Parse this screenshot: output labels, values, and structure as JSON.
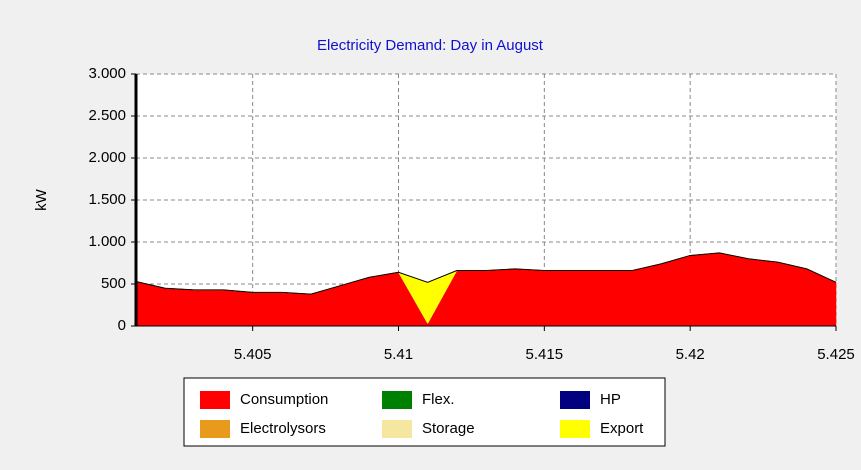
{
  "chart_data": {
    "type": "stacked_area",
    "title": "Electricity Demand: Day in August",
    "y_label": "kW",
    "x": [
      5.401,
      5.402,
      5.403,
      5.404,
      5.405,
      5.406,
      5.407,
      5.408,
      5.409,
      5.41,
      5.411,
      5.412,
      5.413,
      5.414,
      5.415,
      5.416,
      5.417,
      5.418,
      5.419,
      5.42,
      5.421,
      5.422,
      5.423,
      5.424,
      5.425
    ],
    "series": [
      {
        "name": "Consumption",
        "color": "#ff0000",
        "values": [
          530,
          450,
          430,
          430,
          400,
          400,
          380,
          480,
          580,
          640,
          30,
          660,
          660,
          680,
          660,
          660,
          660,
          660,
          740,
          840,
          870,
          800,
          760,
          680,
          520
        ]
      },
      {
        "name": "Flex.",
        "color": "#008000",
        "values": [
          0,
          0,
          0,
          0,
          0,
          0,
          0,
          0,
          0,
          0,
          0,
          0,
          0,
          0,
          0,
          0,
          0,
          0,
          0,
          0,
          0,
          0,
          0,
          0,
          0
        ]
      },
      {
        "name": "HP",
        "color": "#000080",
        "values": [
          0,
          0,
          0,
          0,
          0,
          0,
          0,
          0,
          0,
          0,
          0,
          0,
          0,
          0,
          0,
          0,
          0,
          0,
          0,
          0,
          0,
          0,
          0,
          0,
          0
        ]
      },
      {
        "name": "Electrolysors",
        "color": "#e89a1c",
        "values": [
          0,
          0,
          0,
          0,
          0,
          0,
          0,
          0,
          0,
          0,
          0,
          0,
          0,
          0,
          0,
          0,
          0,
          0,
          0,
          0,
          0,
          0,
          0,
          0,
          0
        ]
      },
      {
        "name": "Storage",
        "color": "#f5e6a0",
        "values": [
          0,
          0,
          0,
          0,
          0,
          0,
          0,
          0,
          0,
          0,
          0,
          0,
          0,
          0,
          0,
          0,
          0,
          0,
          0,
          0,
          0,
          0,
          0,
          0,
          0
        ]
      },
      {
        "name": "Export",
        "color": "#ffff00",
        "values": [
          0,
          0,
          0,
          0,
          0,
          0,
          0,
          0,
          0,
          0,
          490,
          0,
          0,
          0,
          0,
          0,
          0,
          0,
          0,
          0,
          0,
          0,
          0,
          0,
          0
        ]
      }
    ],
    "xlim": [
      5.401,
      5.425
    ],
    "xticks": [
      5.405,
      5.41,
      5.415,
      5.42,
      5.425
    ],
    "ylim": [
      0,
      3000
    ],
    "yticks": [
      0,
      {
        "value": 500,
        "label": "500"
      },
      {
        "value": 1000,
        "label": "1.000"
      },
      {
        "value": 1500,
        "label": "1.500"
      },
      {
        "value": 2000,
        "label": "2.000"
      },
      {
        "value": 2500,
        "label": "2.500"
      },
      {
        "value": 3000,
        "label": "3.000"
      }
    ],
    "grid": true
  }
}
